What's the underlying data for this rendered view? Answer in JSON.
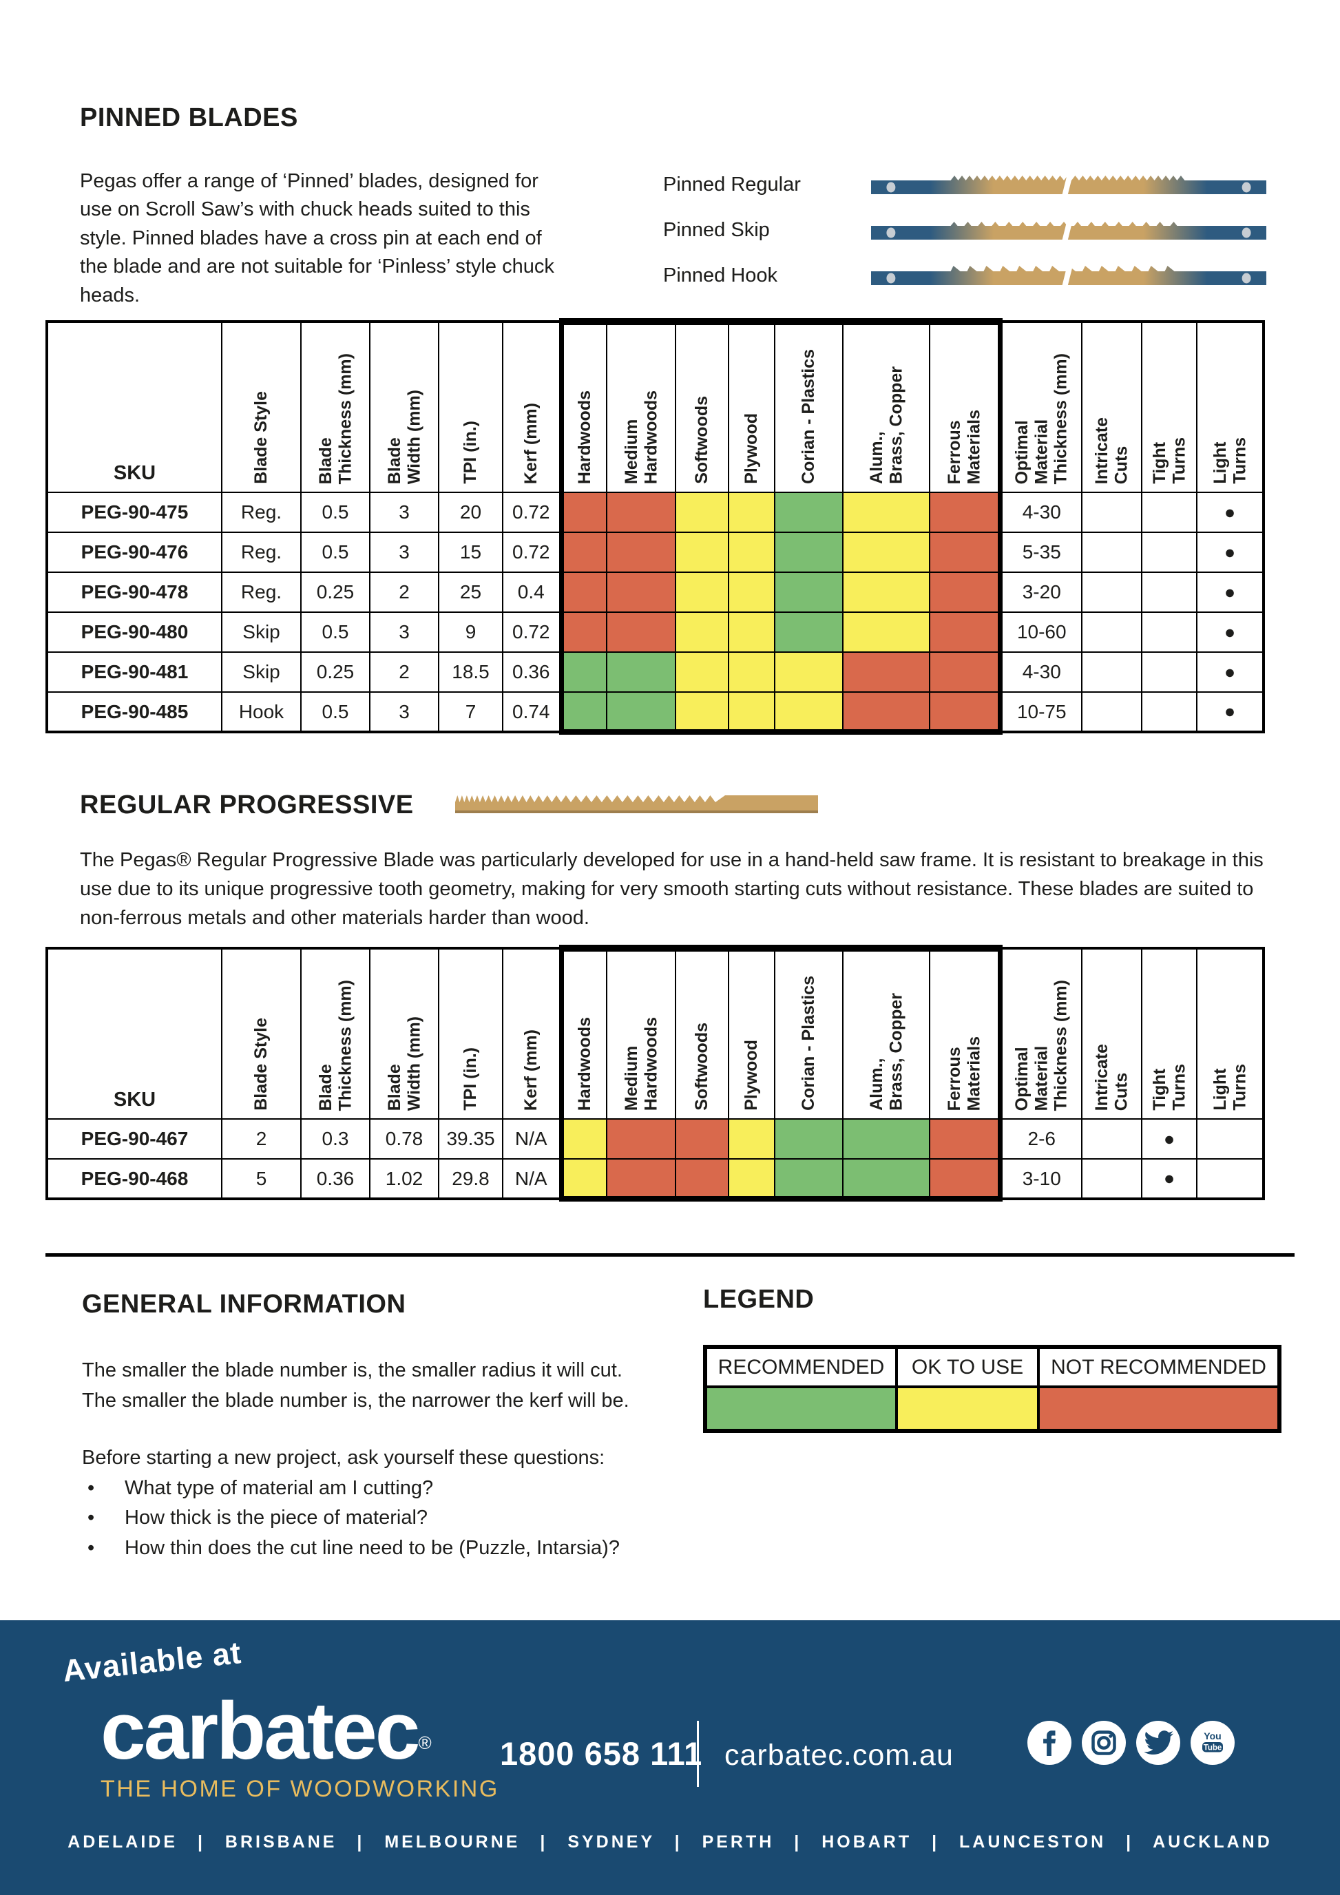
{
  "colors": {
    "recommended": "#7CBE72",
    "ok_to_use": "#F8EE5B",
    "not_recommended": "#D9694C",
    "footer_bg": "#1A4A71",
    "gold": "#E9BC5E",
    "blade_steel_blue": "#2E5B80",
    "blade_tan": "#C9A264"
  },
  "pinned": {
    "title": "PINNED BLADES",
    "description": "Pegas offer a range of ‘Pinned’ blades, designed for use on Scroll Saw’s with chuck heads suited to this style. Pinned blades have a cross pin at each end of the blade and are not suitable for ‘Pinless’ style chuck heads.",
    "blades": [
      {
        "label": "Pinned Regular",
        "type": "regular"
      },
      {
        "label": "Pinned Skip",
        "type": "skip"
      },
      {
        "label": "Pinned Hook",
        "type": "hook"
      }
    ]
  },
  "progressive": {
    "title": "REGULAR PROGRESSIVE",
    "description": "The Pegas® Regular Progressive Blade was particularly developed for use in a hand-held saw frame. It is resistant to breakage in this use due to its unique progressive tooth geometry, making for very smooth starting cuts without resistance. These blades are suited to non-ferrous metals and other materials harder than wood."
  },
  "table": {
    "headers": [
      "SKU",
      "Blade Style",
      "Blade\nThickness (mm)",
      "Blade\nWidth (mm)",
      "TPI (in.)",
      "Kerf (mm)",
      "Hardwoods",
      "Medium\nHardwoods",
      "Softwoods",
      "Plywood",
      "Corian  - Plastics",
      "Alum.,\nBrass, Copper",
      "Ferrous\nMaterials",
      "Optimal\nMaterial\nThickness (mm)",
      "Intricate\nCuts",
      "Tight\nTurns",
      "Light\nTurns"
    ],
    "dot": "●"
  },
  "pinned_rows": [
    {
      "sku": "PEG-90-475",
      "blade_style": "Reg.",
      "blade_thickness_mm": "0.5",
      "blade_width_mm": "3",
      "tpi_in": "20",
      "kerf_mm": "0.72",
      "materials": [
        "N",
        "N",
        "O",
        "O",
        "R",
        "O",
        "N"
      ],
      "optimal_material_thickness_mm": "4-30",
      "intricate_cuts": "",
      "tight_turns": "",
      "light_turns": "●"
    },
    {
      "sku": "PEG-90-476",
      "blade_style": "Reg.",
      "blade_thickness_mm": "0.5",
      "blade_width_mm": "3",
      "tpi_in": "15",
      "kerf_mm": "0.72",
      "materials": [
        "N",
        "N",
        "O",
        "O",
        "R",
        "O",
        "N"
      ],
      "optimal_material_thickness_mm": "5-35",
      "intricate_cuts": "",
      "tight_turns": "",
      "light_turns": "●"
    },
    {
      "sku": "PEG-90-478",
      "blade_style": "Reg.",
      "blade_thickness_mm": "0.25",
      "blade_width_mm": "2",
      "tpi_in": "25",
      "kerf_mm": "0.4",
      "materials": [
        "N",
        "N",
        "O",
        "O",
        "R",
        "O",
        "N"
      ],
      "optimal_material_thickness_mm": "3-20",
      "intricate_cuts": "",
      "tight_turns": "",
      "light_turns": "●"
    },
    {
      "sku": "PEG-90-480",
      "blade_style": "Skip",
      "blade_thickness_mm": "0.5",
      "blade_width_mm": "3",
      "tpi_in": "9",
      "kerf_mm": "0.72",
      "materials": [
        "N",
        "N",
        "O",
        "O",
        "R",
        "O",
        "N"
      ],
      "optimal_material_thickness_mm": "10-60",
      "intricate_cuts": "",
      "tight_turns": "",
      "light_turns": "●"
    },
    {
      "sku": "PEG-90-481",
      "blade_style": "Skip",
      "blade_thickness_mm": "0.25",
      "blade_width_mm": "2",
      "tpi_in": "18.5",
      "kerf_mm": "0.36",
      "materials": [
        "R",
        "R",
        "O",
        "O",
        "O",
        "N",
        "N"
      ],
      "optimal_material_thickness_mm": "4-30",
      "intricate_cuts": "",
      "tight_turns": "",
      "light_turns": "●"
    },
    {
      "sku": "PEG-90-485",
      "blade_style": "Hook",
      "blade_thickness_mm": "0.5",
      "blade_width_mm": "3",
      "tpi_in": "7",
      "kerf_mm": "0.74",
      "materials": [
        "R",
        "R",
        "O",
        "O",
        "O",
        "N",
        "N"
      ],
      "optimal_material_thickness_mm": "10-75",
      "intricate_cuts": "",
      "tight_turns": "",
      "light_turns": "●"
    }
  ],
  "progressive_rows": [
    {
      "sku": "PEG-90-467",
      "blade_style": "2",
      "blade_thickness_mm": "0.3",
      "blade_width_mm": "0.78",
      "tpi_in": "39.35",
      "kerf_mm": "N/A",
      "materials": [
        "O",
        "N",
        "N",
        "O",
        "R",
        "R",
        "N"
      ],
      "optimal_material_thickness_mm": "2-6",
      "intricate_cuts": "",
      "tight_turns": "●",
      "light_turns": ""
    },
    {
      "sku": "PEG-90-468",
      "blade_style": "5",
      "blade_thickness_mm": "0.36",
      "blade_width_mm": "1.02",
      "tpi_in": "29.8",
      "kerf_mm": "N/A",
      "materials": [
        "O",
        "N",
        "N",
        "O",
        "R",
        "R",
        "N"
      ],
      "optimal_material_thickness_mm": "3-10",
      "intricate_cuts": "",
      "tight_turns": "●",
      "light_turns": ""
    }
  ],
  "general_info": {
    "title": "GENERAL INFORMATION",
    "line1": "The smaller the blade number is, the smaller radius it will cut.",
    "line2": "The smaller the blade number is, the narrower the kerf will be.",
    "intro": "Before starting a new project, ask yourself these questions:",
    "bullet_char": "•",
    "bullets": [
      "What type of material am I cutting?",
      "How thick is the piece of material?",
      "How thin does the cut line need to be (Puzzle, Intarsia)?"
    ]
  },
  "legend": {
    "title": "LEGEND",
    "items": [
      {
        "label": "RECOMMENDED",
        "code": "R"
      },
      {
        "label": "OK TO USE",
        "code": "O"
      },
      {
        "label": "NOT RECOMMENDED",
        "code": "N"
      }
    ]
  },
  "footer": {
    "available_at": "Available at",
    "logo_text": "carbatec",
    "registered": "®",
    "tagline": "THE HOME OF WOODWORKING",
    "phone": "1800 658 111",
    "website": "carbatec.com.au",
    "social": [
      "facebook",
      "instagram",
      "twitter",
      "youtube"
    ],
    "cities": [
      "ADELAIDE",
      "BRISBANE",
      "MELBOURNE",
      "SYDNEY",
      "PERTH",
      "HOBART",
      "LAUNCESTON",
      "AUCKLAND"
    ]
  }
}
